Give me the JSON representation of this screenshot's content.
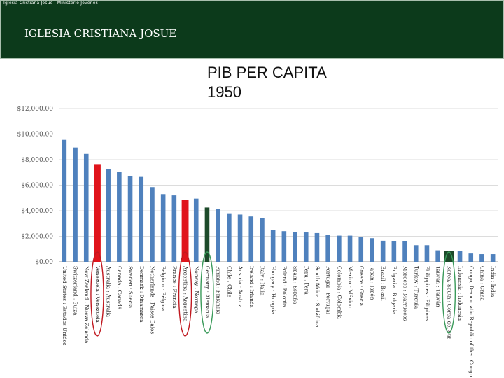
{
  "header": {
    "caption": "Iglesia Cristiana Josue · Ministerio Jóvenes",
    "brand": "IGLESIA CRISTIANA JOSUE"
  },
  "slide": {
    "title_line1": "PIB PER CAPITA",
    "title_line2": "1950"
  },
  "colors": {
    "header_bg": "#0c3a1b",
    "bar_default": "#4f81bd",
    "bar_red": "#e0141b",
    "bar_dark": "#1d4a2a",
    "circle_red": "#c0181f",
    "circle_green": "#3a9a5a"
  },
  "chart_data": {
    "type": "bar",
    "title": "PIB PER CAPITA 1950",
    "xlabel": "",
    "ylabel": "",
    "ylim": [
      0,
      12000
    ],
    "yticks": [
      0,
      2000,
      4000,
      6000,
      8000,
      10000,
      12000
    ],
    "ytick_labels": [
      "$0.00",
      "$2,000.00",
      "$4,000.00",
      "$6,000.00",
      "$8,000.00",
      "$10,000.00",
      "$12,000.00"
    ],
    "grid": true,
    "categories": [
      "United States : Estados Unidos",
      "Switzerland : Suiza",
      "New Zealand : Nueva Zelanda",
      "Venezuela : Venezuela",
      "Australia : Australia",
      "Canada : Canadá",
      "Sweden : Suecia",
      "Denmark : Dinamarca",
      "Netherlands : Países Bajos",
      "Belgium : Bélgica",
      "France : Francia",
      "Argentina : Argentina",
      "Norway : Noruega",
      "Germany : Alemania",
      "Finland : Finlandia",
      "Chile : Chile",
      "Austria : Austria",
      "Ireland : Irlanda",
      "Italy : Italia",
      "Hungary : Hungría",
      "Poland : Polonia",
      "Spain : España",
      "Peru : Perú",
      "South Africa : Sudáfrica",
      "Portugal : Portugal",
      "Colombia : Colombia",
      "Mexico : México",
      "Greece : Grecia",
      "Japan : Japón",
      "Brazil : Brasil",
      "Bulgaria : Bulgaria",
      "Morocco : Marruecos",
      "Turkey : Turquía",
      "Philippines : Filipinas",
      "Taiwan : Taiwán",
      "Korea, South : Corea del Sur",
      "Indonesia : Indonesia",
      "Congo, Democratic Republic of the : Congo...",
      "China : China",
      "India : India"
    ],
    "values": [
      9550,
      8950,
      8450,
      7650,
      7250,
      7050,
      6700,
      6650,
      5850,
      5300,
      5200,
      4850,
      4950,
      4250,
      4150,
      3800,
      3700,
      3550,
      3400,
      2500,
      2400,
      2350,
      2300,
      2250,
      2100,
      2050,
      2050,
      1950,
      1850,
      1650,
      1600,
      1600,
      1300,
      1300,
      900,
      850,
      850,
      650,
      600,
      600
    ],
    "highlight_red": [
      3,
      11
    ],
    "highlight_dark": [
      13,
      35
    ],
    "circled_red": [
      3,
      11
    ],
    "circled_green": [
      13,
      35
    ]
  }
}
